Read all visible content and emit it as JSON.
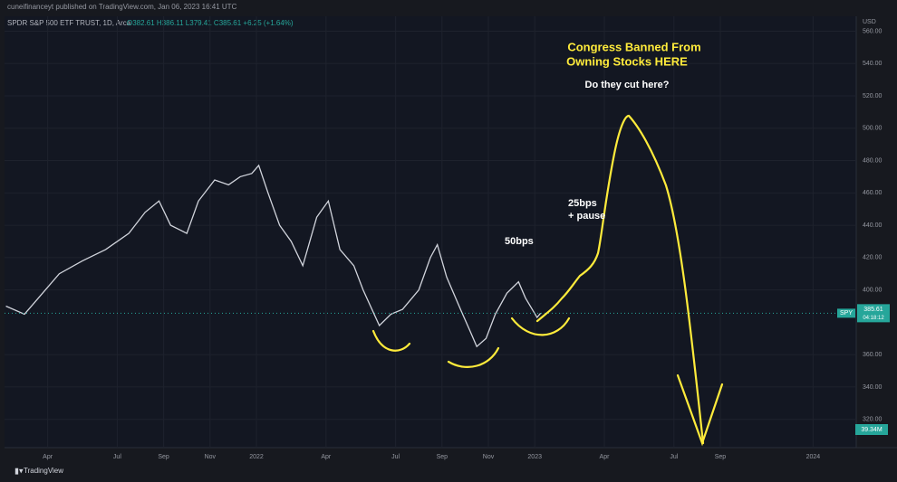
{
  "header": {
    "publisher": "cuneifinanceyt published on TradingView.com, Jan 06, 2023 16:41 UTC",
    "symbol": "SPDR S&P 500 ETF TRUST, 1D, Arca",
    "ohlc": "O382.61 H386.11 L379.41 C385.61 +6.25 (+1.64%)"
  },
  "chart_data": {
    "type": "line",
    "currency": "USD",
    "x": [
      1.2,
      2,
      2.6,
      3.5,
      4.5,
      5.5,
      6.5,
      7.2,
      7.8,
      8.3,
      9,
      9.5,
      10.2,
      10.8,
      11.3,
      11.8,
      12.1,
      12.5,
      13,
      13.5,
      14,
      14.6,
      15.1,
      15.6,
      16.2,
      16.6,
      17.3,
      17.8,
      18.3,
      19,
      19.5,
      19.8,
      20.2,
      20.8,
      21.2,
      21.5,
      21.9,
      22.3,
      22.8,
      23.3,
      23.6,
      24.1,
      24.25
    ],
    "series": [
      {
        "name": "SPY",
        "color": "#d1d4dc",
        "values": [
          390,
          385,
          395,
          410,
          418,
          425,
          435,
          448,
          455,
          440,
          435,
          455,
          468,
          465,
          470,
          472,
          477,
          460,
          440,
          430,
          415,
          445,
          455,
          425,
          415,
          400,
          378,
          385,
          388,
          400,
          420,
          428,
          408,
          388,
          375,
          365,
          370,
          385,
          398,
          405,
          395,
          383,
          385.61
        ]
      }
    ],
    "xlim": [
      1.14,
      37.86
    ],
    "xticks": [
      {
        "value": 3,
        "label": "Apr"
      },
      {
        "value": 6,
        "label": "Jul"
      },
      {
        "value": 8,
        "label": "Sep"
      },
      {
        "value": 10,
        "label": "Nov"
      },
      {
        "value": 12,
        "label": "2022"
      },
      {
        "value": 15,
        "label": "Apr"
      },
      {
        "value": 18,
        "label": "Jul"
      },
      {
        "value": 20,
        "label": "Sep"
      },
      {
        "value": 22,
        "label": "Nov"
      },
      {
        "value": 24,
        "label": "2023"
      },
      {
        "value": 27,
        "label": "Apr"
      },
      {
        "value": 30,
        "label": "Jul"
      },
      {
        "value": 32,
        "label": "Sep"
      },
      {
        "value": 36,
        "label": "2024"
      }
    ],
    "ylim": [
      302.5,
      562.5
    ],
    "yticks": [
      {
        "value": 320,
        "label": "320.00"
      },
      {
        "value": 340,
        "label": "340.00"
      },
      {
        "value": 360,
        "label": "360.00"
      },
      {
        "value": 400,
        "label": "400.00"
      },
      {
        "value": 420,
        "label": "420.00"
      },
      {
        "value": 440,
        "label": "440.00"
      },
      {
        "value": 460,
        "label": "460.00"
      },
      {
        "value": 480,
        "label": "480.00"
      },
      {
        "value": 500,
        "label": "500.00"
      },
      {
        "value": 520,
        "label": "520.00"
      },
      {
        "value": 540,
        "label": "540.00"
      },
      {
        "value": 560,
        "label": "560.00"
      }
    ],
    "last_price": {
      "value": 385.61,
      "label": "385.61",
      "countdown": "04:18:12"
    },
    "volume_label": "39.34M",
    "annotations": [
      "Congress Banned From",
      "Owning Stocks HERE",
      "Do they cut here?",
      "25bps",
      "+ pause",
      "50bps"
    ]
  },
  "footer": {
    "brand": "TradingView"
  }
}
